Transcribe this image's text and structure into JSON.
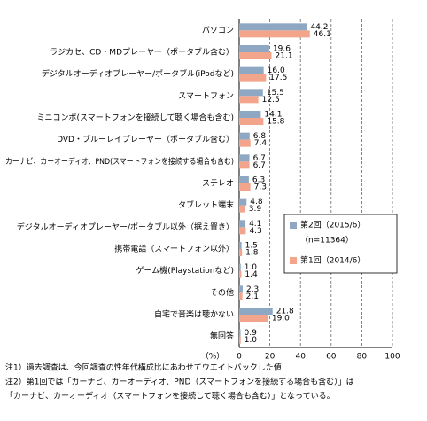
{
  "chart_data": {
    "type": "bar",
    "orientation": "horizontal",
    "categories": [
      "パソコン",
      "ラジカセ、CD・MDプレーヤー（ポータブル含む）",
      "デジタルオーディオプレーヤー/ポータブル(iPodなど)",
      "スマートフォン",
      "ミニコンポ(スマートフォンを接続して聴く場合も含む)",
      "DVD・ブルーレイプレーヤー（ポータブル含む）",
      "カーナビ、カーオーディオ、PND(スマートフォンを接続する場合も含む)",
      "ステレオ",
      "タブレット端末",
      "デジタルオーディオプレーヤー/ポータブル以外（据え置き）",
      "携帯電話（スマートフォン以外）",
      "ゲーム機(Playstationなど)",
      "その他",
      "自宅で音楽は聴かない",
      "無回答"
    ],
    "series": [
      {
        "name": "第2回（2015/6）",
        "color": "#8ea8c3",
        "values": [
          44.2,
          19.6,
          16.0,
          15.5,
          14.1,
          6.8,
          6.7,
          6.3,
          4.8,
          4.1,
          1.5,
          1.0,
          2.3,
          21.8,
          0.9
        ],
        "value_labels": [
          "44.2",
          "19.6",
          "16.0",
          "15.5",
          "14.1",
          "6.8",
          "6.7",
          "6.3",
          "4.8",
          "4.1",
          "1.5",
          "1.0",
          "2.3",
          "21.8",
          "0.9"
        ]
      },
      {
        "name": "第1回（2014/6）",
        "color": "#f3a58b",
        "values": [
          46.1,
          21.1,
          17.5,
          12.5,
          15.8,
          7.4,
          6.7,
          7.3,
          3.9,
          4.3,
          1.8,
          1.4,
          2.1,
          19.0,
          1.0
        ],
        "value_labels": [
          "46.1",
          "21.1",
          "17.5",
          "12.5",
          "15.8",
          "7.4",
          "6.7",
          "7.3",
          "3.9",
          "4.3",
          "1.8",
          "1.4",
          "2.1",
          "19.0",
          "1.0"
        ]
      }
    ],
    "legend_note": "（n=11364）",
    "xlabel": "（%）",
    "xlim": [
      0,
      100
    ],
    "xticks": [
      0,
      20,
      40,
      60,
      80,
      100
    ],
    "grid": true,
    "notes": [
      "注1）過去調査は、今回調査の性年代構成比にあわせてウエイトバックした値",
      "注2）第1回では「カーナビ、カーオーディオ、PND（スマートフォンを接続する場合も含む）」は",
      "「カーナビ、カーオーディオ（スマートフォンを接続して聴く場合も含む）」となっている。"
    ]
  }
}
